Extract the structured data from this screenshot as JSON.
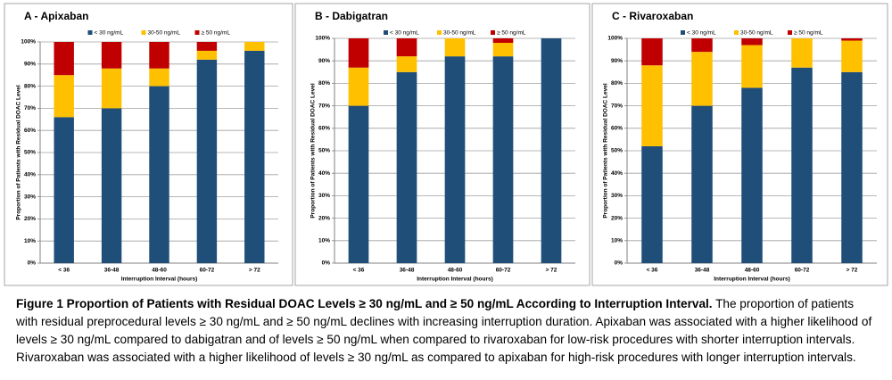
{
  "chart_data": [
    {
      "type": "stacked_bar",
      "title": "A - Apixaban",
      "x_label": "Interruption Interval (hours)",
      "y_label": "Proportion of Patients with Residual DOAC Level",
      "categories": [
        "< 36",
        "36-48",
        "48-60",
        "60-72",
        "> 72"
      ],
      "series": [
        {
          "name": "< 30 ng/mL",
          "color": "#1f4e79",
          "values": [
            66,
            70,
            80,
            92,
            96
          ]
        },
        {
          "name": "30-50 ng/mL",
          "color": "#ffc000",
          "values": [
            19,
            18,
            8,
            4,
            4
          ]
        },
        {
          "name": "≥ 50 ng/mL",
          "color": "#c00000",
          "values": [
            15,
            12,
            12,
            4,
            0
          ]
        }
      ],
      "ylim": [
        0,
        100
      ],
      "yticks": [
        {
          "value": 0,
          "label": "0%"
        },
        {
          "value": 10,
          "label": "10%"
        },
        {
          "value": 20,
          "label": "20%"
        },
        {
          "value": 30,
          "label": "30%"
        },
        {
          "value": 40,
          "label": "40%"
        },
        {
          "value": 50,
          "label": "50%"
        },
        {
          "value": 60,
          "label": "60%"
        },
        {
          "value": 70,
          "label": "70%"
        },
        {
          "value": 80,
          "label": "80%"
        },
        {
          "value": 90,
          "label": "90%"
        },
        {
          "value": 100,
          "label": "100%"
        }
      ],
      "grid": true,
      "legend": "top"
    },
    {
      "type": "stacked_bar",
      "title": "B - Dabigatran",
      "x_label": "Interruption Interval (hours)",
      "y_label": "Proportion of Patients with Residual DOAC Level",
      "categories": [
        "< 36",
        "36-48",
        "48-60",
        "60-72",
        "> 72"
      ],
      "series": [
        {
          "name": "< 30 ng/mL",
          "color": "#1f4e79",
          "values": [
            70,
            85,
            92,
            92,
            100
          ]
        },
        {
          "name": "30-50 ng/mL",
          "color": "#ffc000",
          "values": [
            17,
            7,
            8,
            6,
            0
          ]
        },
        {
          "name": "≥ 50 ng/mL",
          "color": "#c00000",
          "values": [
            13,
            8,
            0,
            2,
            0
          ]
        }
      ],
      "ylim": [
        0,
        100
      ],
      "yticks": [
        {
          "value": 0,
          "label": "0%"
        },
        {
          "value": 10,
          "label": "10%"
        },
        {
          "value": 20,
          "label": "20%"
        },
        {
          "value": 30,
          "label": "30%"
        },
        {
          "value": 40,
          "label": "40%"
        },
        {
          "value": 50,
          "label": "50%"
        },
        {
          "value": 60,
          "label": "60%"
        },
        {
          "value": 70,
          "label": "70%"
        },
        {
          "value": 80,
          "label": "80%"
        },
        {
          "value": 90,
          "label": "90%"
        },
        {
          "value": 100,
          "label": "100%"
        }
      ],
      "grid": true,
      "legend": "top"
    },
    {
      "type": "stacked_bar",
      "title": "C - Rivaroxaban",
      "x_label": "Interruption Interval (hours)",
      "y_label": "Proportion of Patients with Residual DOAC Level",
      "categories": [
        "< 36",
        "36-48",
        "48-60",
        "60-72",
        "> 72"
      ],
      "series": [
        {
          "name": "< 30 ng/mL",
          "color": "#1f4e79",
          "values": [
            52,
            70,
            78,
            87,
            85
          ]
        },
        {
          "name": "30-50 ng/mL",
          "color": "#ffc000",
          "values": [
            36,
            24,
            19,
            13,
            14
          ]
        },
        {
          "name": "≥ 50 ng/mL",
          "color": "#c00000",
          "values": [
            12,
            6,
            3,
            0,
            1
          ]
        }
      ],
      "ylim": [
        0,
        100
      ],
      "yticks": [
        {
          "value": 0,
          "label": "0%"
        },
        {
          "value": 10,
          "label": "10%"
        },
        {
          "value": 20,
          "label": "20%"
        },
        {
          "value": 30,
          "label": "30%"
        },
        {
          "value": 40,
          "label": "40%"
        },
        {
          "value": 50,
          "label": "50%"
        },
        {
          "value": 60,
          "label": "60%"
        },
        {
          "value": 70,
          "label": "70%"
        },
        {
          "value": 80,
          "label": "80%"
        },
        {
          "value": 90,
          "label": "90%"
        },
        {
          "value": 100,
          "label": "100%"
        }
      ],
      "grid": true,
      "legend": "top"
    }
  ],
  "caption": {
    "title": "Figure 1 Proportion of Patients with Residual DOAC Levels ≥ 30 ng/mL and ≥ 50 ng/mL According to Interruption Interval.",
    "text": "The proportion of patients with residual preprocedural levels ≥ 30 ng/mL and ≥ 50 ng/mL declines with increasing interruption duration. Apixaban was associated with a higher likelihood of levels ≥ 30 ng/mL compared to dabigatran and of levels ≥ 50 ng/mL when compared to rivaroxaban for low-risk procedures with shorter interruption intervals. Rivaroxaban was associated with a higher likelihood of levels ≥ 30 ng/mL as compared to apixaban for high-risk procedures with longer interruption intervals."
  }
}
